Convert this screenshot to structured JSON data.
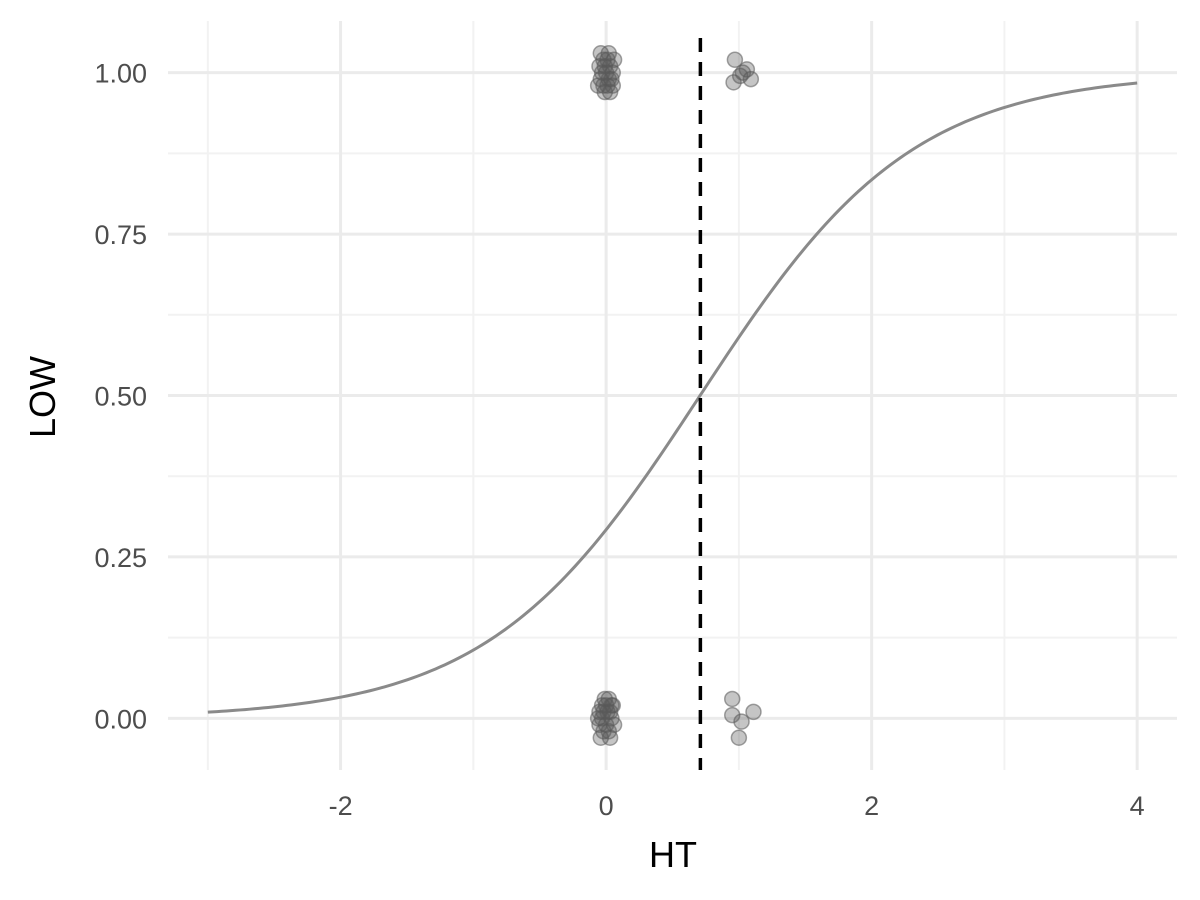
{
  "chart_data": {
    "type": "scatter",
    "xlabel": "HT",
    "ylabel": "LOW",
    "xlim": [
      -3.3,
      4.3
    ],
    "ylim": [
      -0.08,
      1.08
    ],
    "x_ticks": [
      -2,
      0,
      2,
      4
    ],
    "x_tick_labels": [
      "-2",
      "0",
      "2",
      "4"
    ],
    "x_minor_ticks": [
      -3,
      -1,
      1,
      3
    ],
    "y_ticks": [
      0,
      0.25,
      0.5,
      0.75,
      1
    ],
    "y_tick_labels": [
      "0.00",
      "0.25",
      "0.50",
      "0.75",
      "1.00"
    ],
    "y_minor_ticks": [
      0.125,
      0.375,
      0.625,
      0.875
    ],
    "grid": true,
    "legend": "none",
    "colors": {
      "grid_major": "#ebebeb",
      "grid_minor": "#f2f2f2",
      "curve": "#8a8a8a",
      "points": "#5a5a5a",
      "threshold": "#000000"
    },
    "logistic_curve": {
      "x_range": [
        -3,
        4
      ],
      "intercept": -0.885,
      "slope": 1.25
    },
    "threshold_line": {
      "x": 0.71,
      "style": "dashed"
    },
    "series": [
      {
        "points": [
          [
            -0.02,
            1.02
          ],
          [
            0.03,
            1.01
          ],
          [
            -0.04,
            0.99
          ],
          [
            0.01,
            0.98
          ],
          [
            0.05,
            1.0
          ],
          [
            -0.03,
            1.0
          ],
          [
            0.02,
            1.03
          ],
          [
            -0.01,
            0.97
          ],
          [
            0.04,
            0.99
          ],
          [
            -0.05,
            1.01
          ],
          [
            0.0,
            1.0
          ],
          [
            0.06,
            1.02
          ],
          [
            -0.06,
            0.98
          ],
          [
            0.02,
            0.99
          ],
          [
            -0.02,
            0.98
          ],
          [
            0.03,
            0.97
          ],
          [
            0.01,
            1.02
          ],
          [
            -0.04,
            1.03
          ],
          [
            0.05,
            0.98
          ],
          [
            -0.01,
            1.01
          ],
          [
            0.97,
            1.02
          ],
          [
            0.96,
            0.985
          ],
          [
            1.03,
            1.0
          ],
          [
            1.06,
            1.005
          ],
          [
            1.09,
            0.99
          ],
          [
            1.01,
            0.995
          ],
          [
            -0.03,
            0.02
          ],
          [
            0.02,
            0.03
          ],
          [
            -0.05,
            0.01
          ],
          [
            0.04,
            0.0
          ],
          [
            0.0,
            -0.01
          ],
          [
            -0.02,
            -0.02
          ],
          [
            0.03,
            -0.03
          ],
          [
            0.05,
            0.02
          ],
          [
            -0.06,
            0.0
          ],
          [
            0.01,
            0.01
          ],
          [
            -0.01,
            0.03
          ],
          [
            0.06,
            -0.01
          ],
          [
            -0.04,
            -0.03
          ],
          [
            0.02,
            -0.02
          ],
          [
            -0.03,
            0.0
          ],
          [
            0.04,
            0.02
          ],
          [
            0.0,
            0.02
          ],
          [
            -0.05,
            -0.01
          ],
          [
            0.03,
            0.01
          ],
          [
            -0.02,
            0.01
          ],
          [
            0.95,
            0.03
          ],
          [
            0.95,
            0.005
          ],
          [
            1.02,
            -0.005
          ],
          [
            1.11,
            0.01
          ],
          [
            1.0,
            -0.03
          ]
        ]
      }
    ]
  }
}
